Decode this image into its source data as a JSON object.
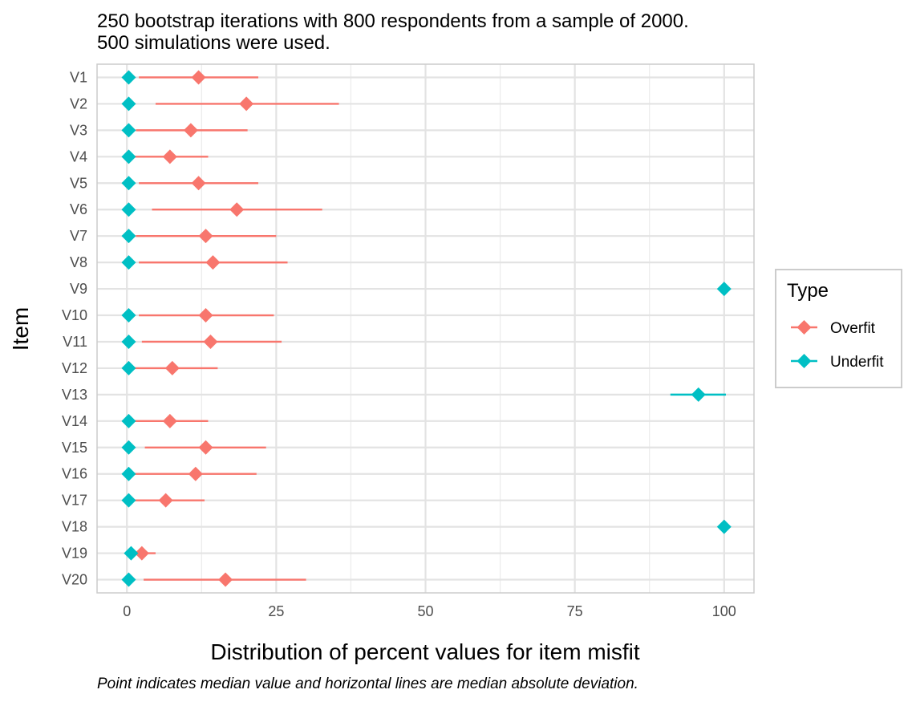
{
  "chart_data": {
    "type": "scatter",
    "title_lines": [
      "250 bootstrap iterations with 800 respondents from a sample of 2000.",
      "500 simulations were used."
    ],
    "xlabel": "Distribution of percent values for item misfit",
    "ylabel": "Item",
    "caption": "Point indicates median value and horizontal lines are median absolute deviation.",
    "xlim": [
      -5,
      105
    ],
    "x_ticks": [
      0,
      25,
      50,
      75,
      100
    ],
    "x_tick_labels": [
      "0",
      "25",
      "50",
      "75",
      "100"
    ],
    "categories": [
      "V1",
      "V2",
      "V3",
      "V4",
      "V5",
      "V6",
      "V7",
      "V8",
      "V9",
      "V10",
      "V11",
      "V12",
      "V13",
      "V14",
      "V15",
      "V16",
      "V17",
      "V18",
      "V19",
      "V20"
    ],
    "grid": true,
    "legend": {
      "title": "Type",
      "position": "right",
      "entries": [
        {
          "name": "Overfit",
          "color": "#F8766D"
        },
        {
          "name": "Underfit",
          "color": "#00BFC4"
        }
      ]
    },
    "series": [
      {
        "name": "Overfit",
        "color": "#F8766D",
        "median": [
          12,
          20,
          10.7,
          7.2,
          12,
          18.4,
          13.2,
          14.4,
          null,
          13.2,
          14,
          7.6,
          null,
          7.2,
          13.2,
          11.5,
          6.5,
          null,
          2.5,
          16.5
        ],
        "low": [
          2,
          4.8,
          1.5,
          1,
          2,
          4.2,
          1.5,
          2,
          null,
          2,
          2.5,
          0,
          null,
          1,
          3,
          1.3,
          0,
          null,
          0.3,
          2.8
        ],
        "high": [
          22,
          35.5,
          20.2,
          13.6,
          22,
          32.7,
          25,
          26.9,
          null,
          24.6,
          25.9,
          15.2,
          null,
          13.6,
          23.3,
          21.7,
          13,
          null,
          4.8,
          30
        ]
      },
      {
        "name": "Underfit",
        "color": "#00BFC4",
        "median": [
          0.3,
          0.3,
          0.3,
          0.3,
          0.3,
          0.3,
          0.3,
          0.3,
          100,
          0.3,
          0.3,
          0.3,
          95.7,
          0.3,
          0.3,
          0.3,
          0.3,
          100,
          0.7,
          0.3
        ],
        "low": [
          null,
          null,
          null,
          null,
          null,
          null,
          null,
          null,
          null,
          null,
          null,
          null,
          91,
          null,
          null,
          null,
          null,
          null,
          null,
          null
        ],
        "high": [
          null,
          null,
          null,
          null,
          null,
          null,
          null,
          null,
          null,
          null,
          null,
          null,
          100.3,
          null,
          null,
          null,
          null,
          null,
          null,
          null
        ]
      }
    ]
  }
}
